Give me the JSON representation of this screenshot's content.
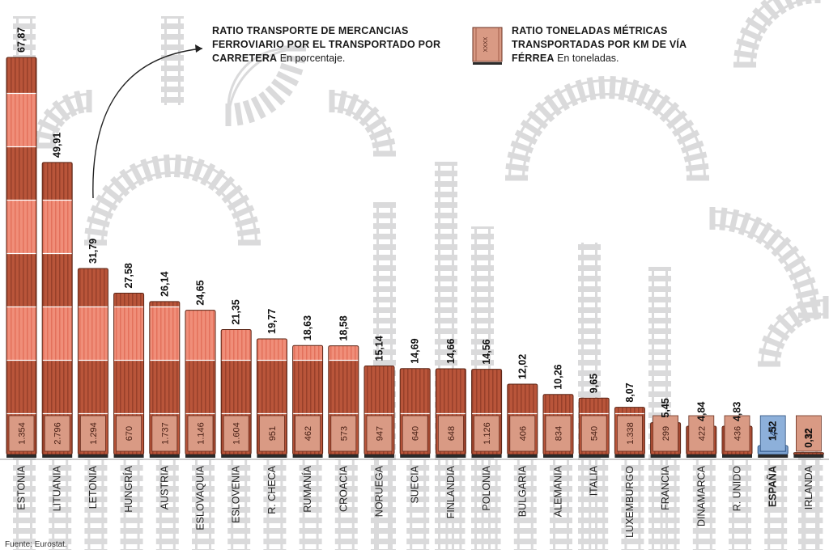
{
  "legend": {
    "ratio_title": "RATIO TRANSPORTE DE MERCANCIAS FERROVIARIO POR EL TRANSPORTADO POR CARRETERA",
    "ratio_unit": "En porcentaje.",
    "tonnage_title": "RATIO TONELADAS MÉTRICAS TRANSPORTADAS POR KM DE VÍA FÉRREA",
    "tonnage_unit": "En toneladas.",
    "icon_label": "XXXX"
  },
  "source": "Fuente: Eurostat.",
  "colors": {
    "dark_car": "#b9553a",
    "light_car": "#f08e79",
    "base_car": "#d99a84",
    "highlight": "#7ca2d0",
    "track": "#dadadb"
  },
  "chart_data": {
    "type": "bar",
    "categories": [
      "ESTONIA",
      "LITUANIA",
      "LETONIA",
      "HUNGRÍA",
      "AUSTRIA",
      "ESLOVAQUIA",
      "ESLOVENIA",
      "R. CHECA",
      "RUMANÍA",
      "CROACIA",
      "NORUEGA",
      "SUECIA",
      "FINLANDIA",
      "POLONIA",
      "BULGARIA",
      "ALEMANIA",
      "ITALIA",
      "LUXEMBURGO",
      "FRANCIA",
      "DINAMARCA",
      "R. UNIDO",
      "ESPAÑA",
      "IRLANDA"
    ],
    "series": [
      {
        "values": [
          67.87,
          49.91,
          31.79,
          27.58,
          26.14,
          24.65,
          21.35,
          19.77,
          18.63,
          18.58,
          15.14,
          14.69,
          14.66,
          14.56,
          12.02,
          10.26,
          9.65,
          8.07,
          5.45,
          4.84,
          4.83,
          1.52,
          0.32
        ]
      },
      {
        "values": [
          1354,
          2796,
          1294,
          670,
          1737,
          1146,
          1604,
          951,
          462,
          573,
          947,
          640,
          648,
          1126,
          406,
          834,
          540,
          1338,
          299,
          422,
          436,
          143,
          22
        ]
      }
    ],
    "value_labels": [
      "67,87",
      "49,91",
      "31,79",
      "27,58",
      "26,14",
      "24,65",
      "21,35",
      "19,77",
      "18,63",
      "18,58",
      "15,14",
      "14,69",
      "14,66",
      "14,56",
      "12,02",
      "10,26",
      "9,65",
      "8,07",
      "5,45",
      "4,84",
      "4,83",
      "1,52",
      "0,32"
    ],
    "base_labels": [
      "1.354",
      "2.796",
      "1.294",
      "670",
      "1.737",
      "1.146",
      "1.604",
      "951",
      "462",
      "573",
      "947",
      "640",
      "648",
      "1.126",
      "406",
      "834",
      "540",
      "1.338",
      "299",
      "422",
      "436",
      "143",
      "22"
    ],
    "highlight": "ESPAÑA"
  }
}
